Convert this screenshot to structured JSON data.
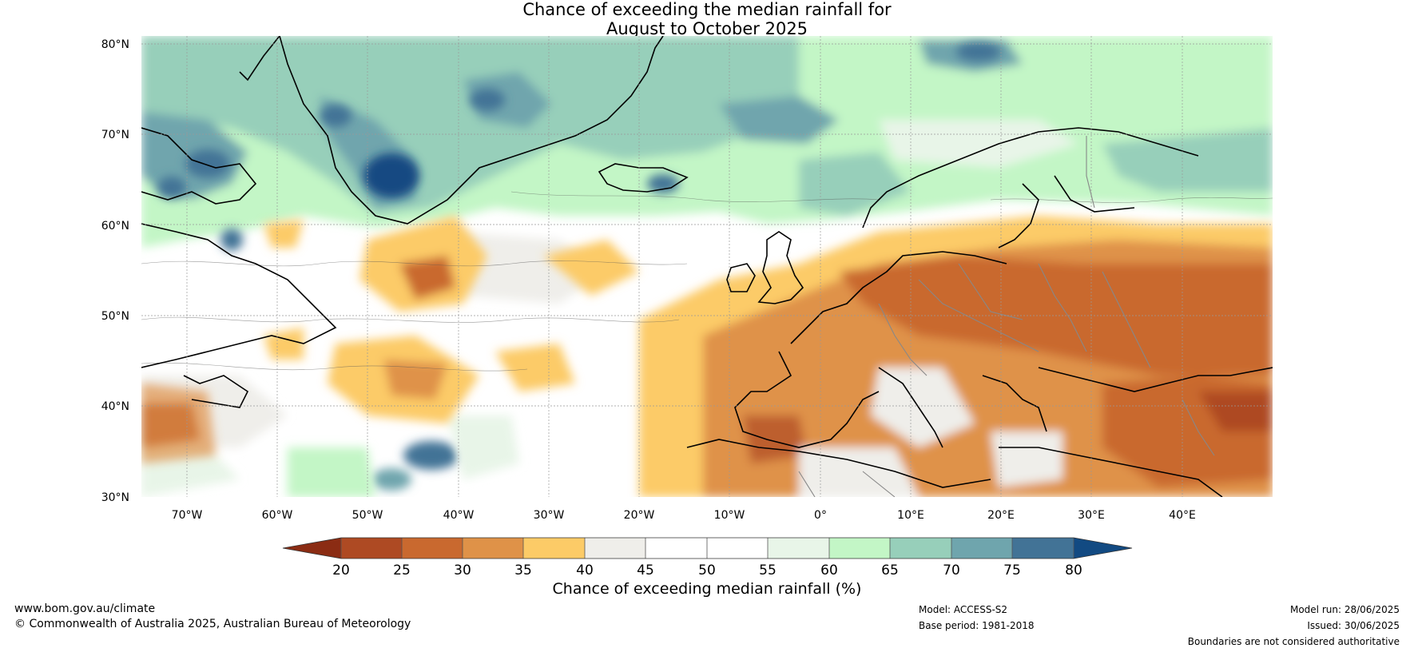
{
  "title": {
    "line1": "Chance of exceeding the median rainfall for",
    "line2": "August to October 2025"
  },
  "map": {
    "lat_labels": [
      "80°N",
      "70°N",
      "60°N",
      "50°N",
      "40°N",
      "30°N"
    ],
    "lon_labels": [
      "70°W",
      "60°W",
      "50°W",
      "40°W",
      "30°W",
      "20°W",
      "10°W",
      "0°",
      "10°E",
      "20°E",
      "30°E",
      "40°E"
    ],
    "extent": {
      "lon_min": -75,
      "lon_max": 50,
      "lat_min": 30,
      "lat_max": 81
    },
    "colors": {
      "lt20": "#8b2c13",
      "20_25": "#ae4a23",
      "25_30": "#c9692f",
      "30_35": "#df9248",
      "35_40": "#fccb67",
      "40_45": "#efeeea",
      "45_50": "#ffffff",
      "50_55": "#ffffff",
      "55_60": "#e8f5e8",
      "60_65": "#c3f6c6",
      "65_70": "#97cfba",
      "70_75": "#6fa5ad",
      "75_80": "#427396",
      "gt80": "#124a82",
      "coastline": "#000000",
      "borders": "#888888",
      "gridline": "#999999"
    }
  },
  "colorbar": {
    "ticks": [
      "20",
      "25",
      "30",
      "35",
      "40",
      "45",
      "50",
      "55",
      "60",
      "65",
      "70",
      "75",
      "80"
    ],
    "title": "Chance of exceeding median rainfall (%)"
  },
  "footer": {
    "website": "www.bom.gov.au/climate",
    "copyright": "© Commonwealth of Australia 2025, Australian Bureau of Meteorology",
    "model": "Model: ACCESS-S2",
    "base_period": "Base period: 1981-2018",
    "model_run": "Model run: 28/06/2025",
    "issued": "Issued: 30/06/2025",
    "disclaimer": "Boundaries are not considered authoritative"
  }
}
